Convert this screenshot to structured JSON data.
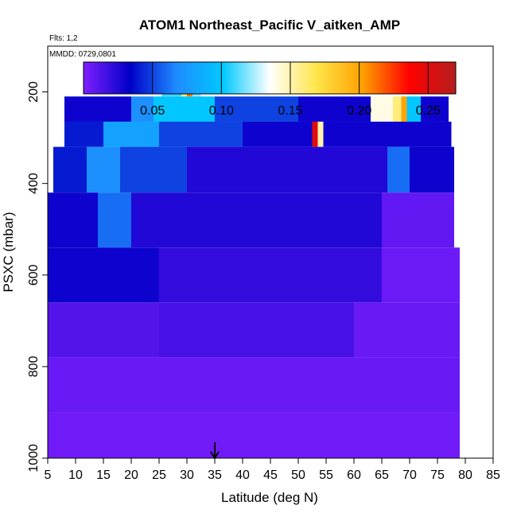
{
  "chart_data": {
    "type": "heatmap",
    "title": "ATOM1 Northeast_Pacific V_aitken_AMP",
    "flights_label": "Flts: 1,2",
    "date_label": "MMDD: 0729,0801",
    "xlabel": "Latitude (deg N)",
    "ylabel": "PSXC (mbar)",
    "xlim": [
      5,
      85
    ],
    "ylim": [
      1000,
      100
    ],
    "x_ticks": [
      5,
      10,
      15,
      20,
      25,
      30,
      35,
      40,
      45,
      50,
      55,
      60,
      65,
      70,
      75,
      80,
      85
    ],
    "y_ticks": [
      200,
      400,
      600,
      800,
      1000
    ],
    "colorbar": {
      "range": [
        0,
        0.27
      ],
      "ticks": [
        0.05,
        0.1,
        0.15,
        0.2,
        0.25
      ],
      "tick_labels": [
        "0.05",
        "0.10",
        "0.15",
        "0.20",
        "0.25"
      ],
      "colors": [
        "#7f1fff",
        "#0000c8",
        "#1e8cff",
        "#00c8ff",
        "#ffffff",
        "#ffe64b",
        "#ffa000",
        "#ff0000",
        "#b41e1e"
      ]
    },
    "marker_latitude": 35,
    "cells": [
      {
        "lat": [
          25.5,
          29
        ],
        "p": [
          170,
          210
        ],
        "v": 0.11
      },
      {
        "lat": [
          29,
          30
        ],
        "p": [
          170,
          210
        ],
        "v": 0.16
      },
      {
        "lat": [
          30,
          31
        ],
        "p": [
          170,
          210
        ],
        "v": 0.21
      },
      {
        "lat": [
          31,
          32.5
        ],
        "p": [
          170,
          210
        ],
        "v": 0.12
      },
      {
        "lat": [
          8,
          20
        ],
        "p": [
          210,
          265
        ],
        "v": 0.03
      },
      {
        "lat": [
          20,
          24
        ],
        "p": [
          210,
          265
        ],
        "v": 0.07
      },
      {
        "lat": [
          24,
          35
        ],
        "p": [
          210,
          265
        ],
        "v": 0.1
      },
      {
        "lat": [
          35,
          50
        ],
        "p": [
          210,
          265
        ],
        "v": 0.05
      },
      {
        "lat": [
          50,
          63
        ],
        "p": [
          210,
          265
        ],
        "v": 0.03
      },
      {
        "lat": [
          63,
          67
        ],
        "p": [
          210,
          265
        ],
        "v": 0.14
      },
      {
        "lat": [
          67,
          68.5
        ],
        "p": [
          210,
          265
        ],
        "v": 0.16
      },
      {
        "lat": [
          68.5,
          69.5
        ],
        "p": [
          210,
          265
        ],
        "v": 0.2
      },
      {
        "lat": [
          69.5,
          72
        ],
        "p": [
          210,
          265
        ],
        "v": 0.1
      },
      {
        "lat": [
          72,
          77
        ],
        "p": [
          210,
          265
        ],
        "v": 0.03
      },
      {
        "lat": [
          8,
          15
        ],
        "p": [
          265,
          320
        ],
        "v": 0.04
      },
      {
        "lat": [
          15,
          25
        ],
        "p": [
          265,
          320
        ],
        "v": 0.08
      },
      {
        "lat": [
          25,
          40
        ],
        "p": [
          265,
          320
        ],
        "v": 0.05
      },
      {
        "lat": [
          40,
          52.5
        ],
        "p": [
          265,
          320
        ],
        "v": 0.03
      },
      {
        "lat": [
          52.5,
          53.5
        ],
        "p": [
          265,
          320
        ],
        "v": 0.25
      },
      {
        "lat": [
          53.5,
          54.5
        ],
        "p": [
          265,
          320
        ],
        "v": 0.15
      },
      {
        "lat": [
          54.5,
          77.5
        ],
        "p": [
          265,
          320
        ],
        "v": 0.03
      },
      {
        "lat": [
          6,
          12
        ],
        "p": [
          320,
          420
        ],
        "v": 0.04
      },
      {
        "lat": [
          12,
          18
        ],
        "p": [
          320,
          420
        ],
        "v": 0.07
      },
      {
        "lat": [
          18,
          30
        ],
        "p": [
          320,
          420
        ],
        "v": 0.05
      },
      {
        "lat": [
          30,
          66
        ],
        "p": [
          320,
          420
        ],
        "v": 0.025
      },
      {
        "lat": [
          66,
          70
        ],
        "p": [
          320,
          420
        ],
        "v": 0.06
      },
      {
        "lat": [
          70,
          78
        ],
        "p": [
          320,
          420
        ],
        "v": 0.03
      },
      {
        "lat": [
          5,
          14
        ],
        "p": [
          420,
          540
        ],
        "v": 0.03
      },
      {
        "lat": [
          14,
          20
        ],
        "p": [
          420,
          540
        ],
        "v": 0.06
      },
      {
        "lat": [
          20,
          65
        ],
        "p": [
          420,
          540
        ],
        "v": 0.025
      },
      {
        "lat": [
          65,
          78
        ],
        "p": [
          420,
          540
        ],
        "v": 0.008
      },
      {
        "lat": [
          5,
          25
        ],
        "p": [
          540,
          660
        ],
        "v": 0.03
      },
      {
        "lat": [
          25,
          65
        ],
        "p": [
          540,
          660
        ],
        "v": 0.02
      },
      {
        "lat": [
          65,
          79
        ],
        "p": [
          540,
          660
        ],
        "v": 0.005
      },
      {
        "lat": [
          5,
          25
        ],
        "p": [
          660,
          780
        ],
        "v": 0.012
      },
      {
        "lat": [
          25,
          60
        ],
        "p": [
          660,
          780
        ],
        "v": 0.015
      },
      {
        "lat": [
          60,
          79
        ],
        "p": [
          660,
          780
        ],
        "v": 0.006
      },
      {
        "lat": [
          5,
          79
        ],
        "p": [
          780,
          900
        ],
        "v": 0.006
      },
      {
        "lat": [
          5,
          79
        ],
        "p": [
          900,
          1000
        ],
        "v": 0.004
      }
    ]
  }
}
